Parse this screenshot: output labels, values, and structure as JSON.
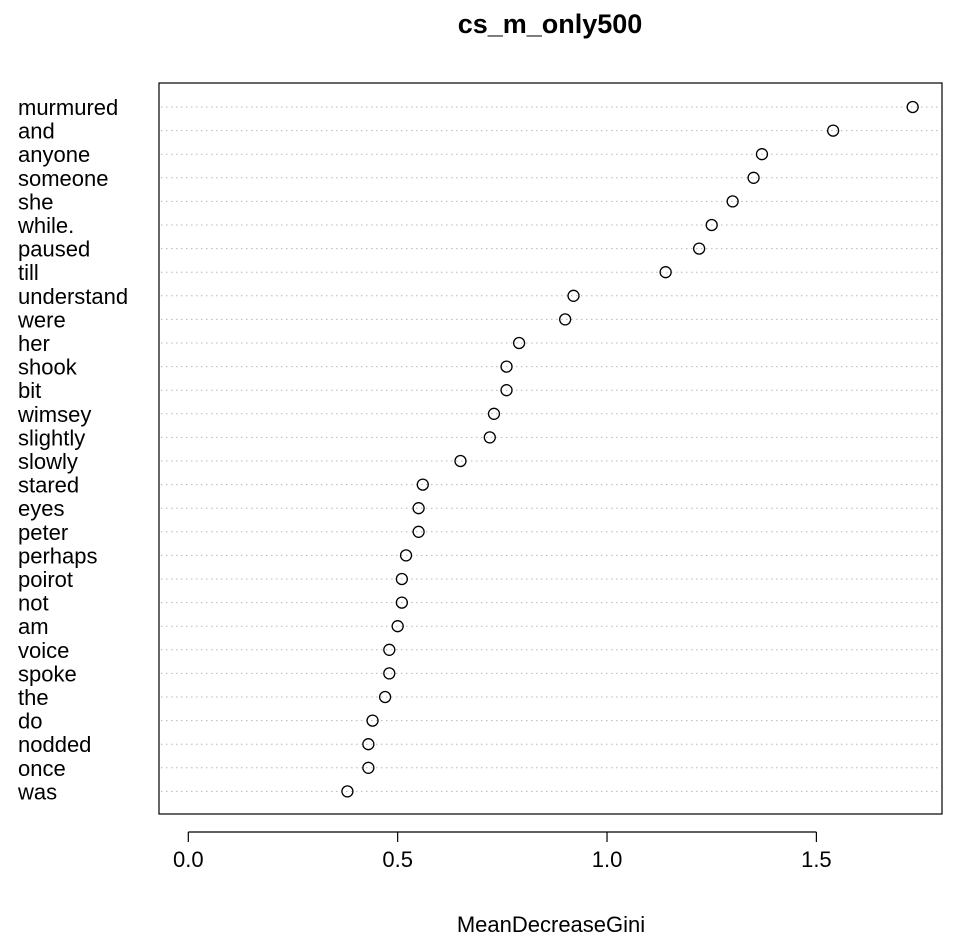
{
  "chart_data": {
    "type": "scatter",
    "title": "cs_m_only500",
    "xlabel": "MeanDecreaseGini",
    "xlim": [
      -0.07,
      1.8
    ],
    "xticks": [
      "0.0",
      "0.5",
      "1.0",
      "1.5"
    ],
    "tick_values": [
      0,
      0.5,
      1.0,
      1.5
    ],
    "grid": "dotted horizontal",
    "categories": [
      "murmured",
      "and",
      "anyone",
      "someone",
      "she",
      "while.",
      "paused",
      "till",
      "understand",
      "were",
      "her",
      "shook",
      "bit",
      "wimsey",
      "slightly",
      "slowly",
      "stared",
      "eyes",
      "peter",
      "perhaps",
      "poirot",
      "not",
      "am",
      "voice",
      "spoke",
      "the",
      "do",
      "nodded",
      "once",
      "was"
    ],
    "values": [
      1.73,
      1.54,
      1.37,
      1.35,
      1.3,
      1.25,
      1.22,
      1.14,
      0.92,
      0.9,
      0.79,
      0.76,
      0.76,
      0.73,
      0.72,
      0.65,
      0.56,
      0.55,
      0.55,
      0.52,
      0.51,
      0.51,
      0.5,
      0.48,
      0.48,
      0.47,
      0.44,
      0.43,
      0.43,
      0.38
    ]
  }
}
